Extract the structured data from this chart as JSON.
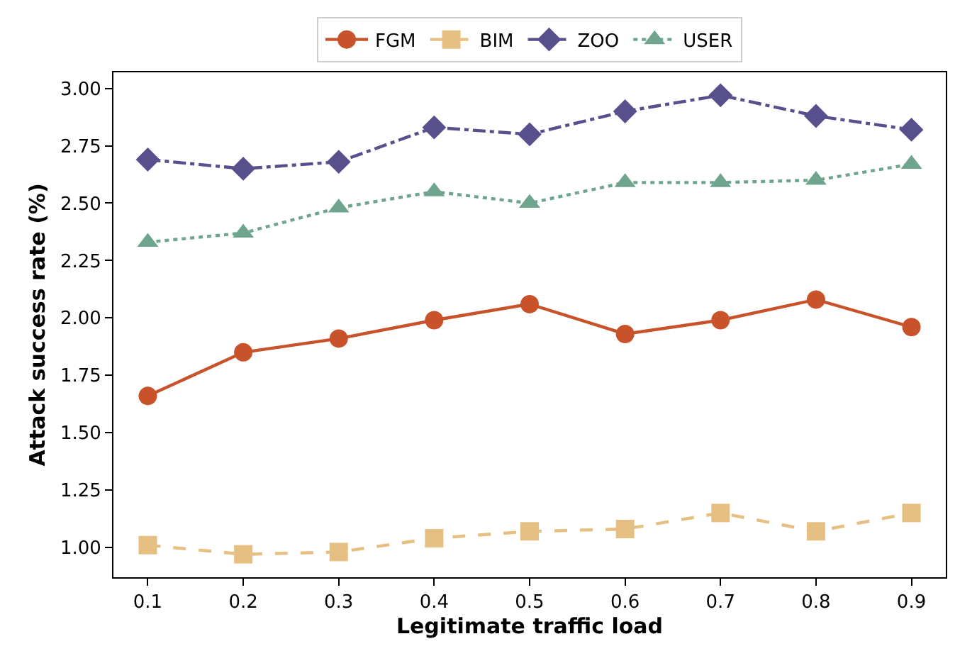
{
  "chart_data": {
    "type": "line",
    "xlabel": "Legitimate traffic load",
    "ylabel": "Attack success rate (%)",
    "x": [
      0.1,
      0.2,
      0.3,
      0.4,
      0.5,
      0.6,
      0.7,
      0.8,
      0.9
    ],
    "series": [
      {
        "name": "FGM",
        "color": "#c8522a",
        "marker": "circle",
        "line_style": "solid",
        "values": [
          1.66,
          1.85,
          1.91,
          1.99,
          2.06,
          1.93,
          1.99,
          2.08,
          1.96
        ]
      },
      {
        "name": "BIM",
        "color": "#e6c083",
        "marker": "square",
        "line_style": "dashed",
        "values": [
          1.01,
          0.97,
          0.98,
          1.04,
          1.07,
          1.08,
          1.15,
          1.07,
          1.15
        ]
      },
      {
        "name": "ZOO",
        "color": "#58508d",
        "marker": "diamond",
        "line_style": "dashdot",
        "values": [
          2.69,
          2.65,
          2.68,
          2.83,
          2.8,
          2.9,
          2.97,
          2.88,
          2.82
        ]
      },
      {
        "name": "USER",
        "color": "#6fa58f",
        "marker": "triangle",
        "line_style": "dotted",
        "values": [
          2.33,
          2.37,
          2.48,
          2.55,
          2.5,
          2.59,
          2.59,
          2.6,
          2.67
        ]
      }
    ],
    "xlim": [
      0.064,
      0.936
    ],
    "ylim": [
      0.87,
      3.07
    ],
    "xticks": [
      0.1,
      0.2,
      0.3,
      0.4,
      0.5,
      0.6,
      0.7,
      0.8,
      0.9
    ],
    "yticks": [
      {
        "value": 1.0,
        "label": "1.00"
      },
      {
        "value": 1.25,
        "label": "1.25"
      },
      {
        "value": 1.5,
        "label": "1.50"
      },
      {
        "value": 1.75,
        "label": "1.75"
      },
      {
        "value": 2.0,
        "label": "2.00"
      },
      {
        "value": 2.25,
        "label": "2.25"
      },
      {
        "value": 2.5,
        "label": "2.50"
      },
      {
        "value": 2.75,
        "label": "2.75"
      },
      {
        "value": 3.0,
        "label": "3.00"
      }
    ],
    "legend": "top"
  }
}
